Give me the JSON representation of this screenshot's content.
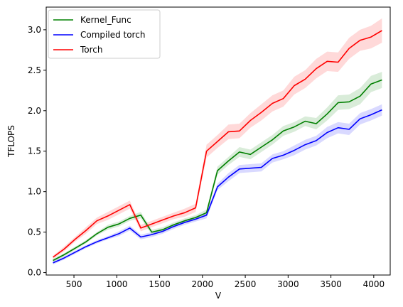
{
  "chart_data": {
    "type": "line",
    "xlabel": "V",
    "ylabel": "TFLOPS",
    "xlim": [
      176,
      4192
    ],
    "ylim": [
      -0.03,
      3.28
    ],
    "xticks": [
      500,
      1000,
      1500,
      2000,
      2500,
      3000,
      3500,
      4000
    ],
    "yticks": [
      0.0,
      0.5,
      1.0,
      1.5,
      2.0,
      2.5,
      3.0
    ],
    "grid": false,
    "legend_position": "top-left",
    "x": [
      256,
      384,
      512,
      640,
      768,
      896,
      1024,
      1152,
      1280,
      1408,
      1536,
      1664,
      1792,
      1920,
      2048,
      2176,
      2304,
      2432,
      2560,
      2688,
      2816,
      2944,
      3072,
      3200,
      3328,
      3456,
      3584,
      3712,
      3840,
      3968,
      4096
    ],
    "series": [
      {
        "name": "Kernel_Func",
        "color": "#008000",
        "values": [
          0.15,
          0.22,
          0.3,
          0.38,
          0.48,
          0.56,
          0.6,
          0.67,
          0.71,
          0.5,
          0.53,
          0.59,
          0.64,
          0.68,
          0.74,
          1.26,
          1.38,
          1.49,
          1.46,
          1.55,
          1.64,
          1.75,
          1.8,
          1.87,
          1.84,
          1.96,
          2.1,
          2.11,
          2.18,
          2.33,
          2.38
        ],
        "band": [
          0.02,
          0.02,
          0.02,
          0.02,
          0.02,
          0.03,
          0.03,
          0.03,
          0.04,
          0.03,
          0.03,
          0.03,
          0.03,
          0.03,
          0.04,
          0.05,
          0.05,
          0.06,
          0.06,
          0.06,
          0.06,
          0.06,
          0.06,
          0.06,
          0.07,
          0.08,
          0.09,
          0.09,
          0.1,
          0.1,
          0.1
        ]
      },
      {
        "name": "Compiled torch",
        "color": "#0000ff",
        "values": [
          0.12,
          0.18,
          0.25,
          0.32,
          0.38,
          0.43,
          0.48,
          0.55,
          0.44,
          0.47,
          0.51,
          0.57,
          0.62,
          0.66,
          0.71,
          1.06,
          1.18,
          1.28,
          1.29,
          1.3,
          1.41,
          1.45,
          1.51,
          1.58,
          1.63,
          1.73,
          1.79,
          1.77,
          1.9,
          1.95,
          2.01
        ],
        "band": [
          0.02,
          0.02,
          0.02,
          0.02,
          0.02,
          0.02,
          0.03,
          0.03,
          0.03,
          0.03,
          0.03,
          0.03,
          0.03,
          0.03,
          0.04,
          0.04,
          0.05,
          0.05,
          0.05,
          0.05,
          0.05,
          0.05,
          0.06,
          0.06,
          0.06,
          0.07,
          0.07,
          0.07,
          0.07,
          0.07,
          0.07
        ]
      },
      {
        "name": "Torch",
        "color": "#ff0000",
        "values": [
          0.19,
          0.29,
          0.41,
          0.52,
          0.64,
          0.7,
          0.77,
          0.84,
          0.55,
          0.6,
          0.65,
          0.7,
          0.74,
          0.8,
          1.5,
          1.62,
          1.74,
          1.75,
          1.88,
          1.98,
          2.09,
          2.15,
          2.31,
          2.39,
          2.52,
          2.61,
          2.6,
          2.77,
          2.87,
          2.91,
          2.99
        ],
        "band": [
          0.02,
          0.03,
          0.03,
          0.04,
          0.04,
          0.05,
          0.05,
          0.05,
          0.04,
          0.04,
          0.04,
          0.04,
          0.05,
          0.05,
          0.08,
          0.08,
          0.09,
          0.09,
          0.09,
          0.1,
          0.1,
          0.1,
          0.11,
          0.11,
          0.12,
          0.12,
          0.12,
          0.13,
          0.13,
          0.14,
          0.15
        ]
      }
    ]
  }
}
